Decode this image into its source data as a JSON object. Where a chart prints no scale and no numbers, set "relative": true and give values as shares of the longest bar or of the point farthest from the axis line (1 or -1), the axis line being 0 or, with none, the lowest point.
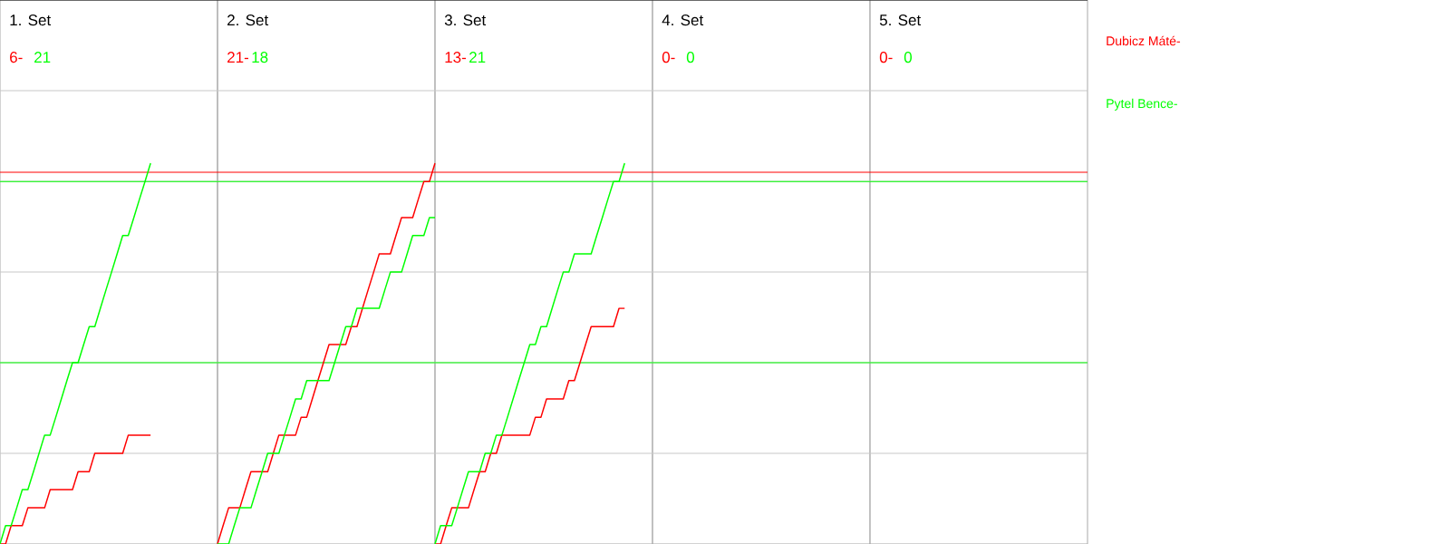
{
  "chart_data": [
    {
      "type": "line",
      "title": "1. Set",
      "annotations": [
        "6-",
        "21"
      ],
      "relative": true,
      "categories": [
        null,
        null,
        null,
        null,
        null,
        null,
        null,
        null,
        null,
        null,
        null,
        null,
        null,
        null,
        null,
        null,
        null,
        null,
        null,
        null,
        null,
        null,
        null,
        null,
        null,
        null,
        null,
        null,
        null,
        null,
        null,
        null,
        null,
        null,
        null,
        null,
        null,
        null,
        null,
        null
      ],
      "series": [
        {
          "name": "Dubicz Máté-",
          "color": "#ff0000",
          "values": [
            0,
            0,
            0.048,
            0.048,
            0.048,
            0.095,
            0.095,
            0.095,
            0.095,
            0.143,
            0.143,
            0.143,
            0.143,
            0.143,
            0.19,
            0.19,
            0.19,
            0.238,
            0.238,
            0.238,
            0.238,
            0.238,
            0.238,
            0.286,
            0.286,
            0.286,
            0.286,
            0.286,
            null,
            null,
            null,
            null,
            null,
            null,
            null,
            null,
            null,
            null,
            null,
            null
          ]
        },
        {
          "name": "Pytel Bence-",
          "color": "#00ff00",
          "values": [
            0,
            0.048,
            0.048,
            0.095,
            0.143,
            0.143,
            0.19,
            0.238,
            0.286,
            0.286,
            0.333,
            0.381,
            0.429,
            0.476,
            0.476,
            0.524,
            0.571,
            0.571,
            0.619,
            0.667,
            0.714,
            0.762,
            0.81,
            0.81,
            0.857,
            0.905,
            0.952,
            1,
            null,
            null,
            null,
            null,
            null,
            null,
            null,
            null,
            null,
            null,
            null,
            null
          ]
        }
      ],
      "grid": "y",
      "legend": "right",
      "ref_lines": [
        {
          "axis": "y",
          "value": 0.976,
          "color": "#ff0000"
        },
        {
          "axis": "y",
          "value": 0.952,
          "color": "#00ff00"
        },
        {
          "axis": "y",
          "value": 0.476,
          "color": "#00ff00"
        }
      ]
    },
    {
      "type": "line",
      "title": "2. Set",
      "annotations": [
        "21-",
        "18"
      ],
      "relative": true,
      "categories": [
        null,
        null,
        null,
        null,
        null,
        null,
        null,
        null,
        null,
        null,
        null,
        null,
        null,
        null,
        null,
        null,
        null,
        null,
        null,
        null,
        null,
        null,
        null,
        null,
        null,
        null,
        null,
        null,
        null,
        null,
        null,
        null,
        null,
        null,
        null,
        null,
        null,
        null,
        null,
        null
      ],
      "series": [
        {
          "color": "#ff0000",
          "values": [
            0,
            0.048,
            0.095,
            0.095,
            0.095,
            0.143,
            0.19,
            0.19,
            0.19,
            0.19,
            0.238,
            0.286,
            0.286,
            0.286,
            0.286,
            0.333,
            0.333,
            0.381,
            0.429,
            0.476,
            0.524,
            0.524,
            0.524,
            0.524,
            0.571,
            0.571,
            0.619,
            0.667,
            0.714,
            0.762,
            0.762,
            0.762,
            0.81,
            0.857,
            0.857,
            0.857,
            0.905,
            0.952,
            0.952,
            1
          ]
        },
        {
          "color": "#00ff00",
          "values": [
            0,
            0,
            0,
            0.048,
            0.095,
            0.095,
            0.095,
            0.143,
            0.19,
            0.238,
            0.238,
            0.238,
            0.286,
            0.333,
            0.381,
            0.381,
            0.429,
            0.429,
            0.429,
            0.429,
            0.429,
            0.476,
            0.524,
            0.571,
            0.571,
            0.619,
            0.619,
            0.619,
            0.619,
            0.619,
            0.667,
            0.714,
            0.714,
            0.714,
            0.762,
            0.81,
            0.81,
            0.81,
            0.857,
            0.857
          ]
        }
      ],
      "grid": "y",
      "ref_lines": [
        {
          "axis": "y",
          "value": 0.976,
          "color": "#ff0000"
        },
        {
          "axis": "y",
          "value": 0.952,
          "color": "#00ff00"
        },
        {
          "axis": "y",
          "value": 0.476,
          "color": "#00ff00"
        }
      ]
    },
    {
      "type": "line",
      "title": "3. Set",
      "annotations": [
        "13-",
        "21"
      ],
      "relative": true,
      "categories": [
        null,
        null,
        null,
        null,
        null,
        null,
        null,
        null,
        null,
        null,
        null,
        null,
        null,
        null,
        null,
        null,
        null,
        null,
        null,
        null,
        null,
        null,
        null,
        null,
        null,
        null,
        null,
        null,
        null,
        null,
        null,
        null,
        null,
        null,
        null,
        null,
        null,
        null,
        null,
        null
      ],
      "series": [
        {
          "color": "#ff0000",
          "values": [
            0,
            0,
            0.048,
            0.095,
            0.095,
            0.095,
            0.095,
            0.143,
            0.19,
            0.19,
            0.238,
            0.238,
            0.286,
            0.286,
            0.286,
            0.286,
            0.286,
            0.286,
            0.333,
            0.333,
            0.381,
            0.381,
            0.381,
            0.381,
            0.429,
            0.429,
            0.476,
            0.524,
            0.571,
            0.571,
            0.571,
            0.571,
            0.571,
            0.619,
            0.619,
            null,
            null,
            null,
            null,
            null
          ]
        },
        {
          "color": "#00ff00",
          "values": [
            0,
            0.048,
            0.048,
            0.048,
            0.095,
            0.143,
            0.19,
            0.19,
            0.19,
            0.238,
            0.238,
            0.286,
            0.286,
            0.333,
            0.381,
            0.429,
            0.476,
            0.524,
            0.524,
            0.571,
            0.571,
            0.619,
            0.667,
            0.714,
            0.714,
            0.762,
            0.762,
            0.762,
            0.762,
            0.81,
            0.857,
            0.905,
            0.952,
            0.952,
            1,
            null,
            null,
            null,
            null,
            null
          ]
        }
      ],
      "grid": "y",
      "ref_lines": [
        {
          "axis": "y",
          "value": 0.976,
          "color": "#ff0000"
        },
        {
          "axis": "y",
          "value": 0.952,
          "color": "#00ff00"
        },
        {
          "axis": "y",
          "value": 0.476,
          "color": "#00ff00"
        }
      ]
    },
    {
      "type": "other",
      "title": "4. Set",
      "annotations": [
        "0-",
        "0"
      ]
    },
    {
      "type": "other",
      "title": "5. Set",
      "annotations": [
        "0-",
        "0"
      ]
    }
  ]
}
